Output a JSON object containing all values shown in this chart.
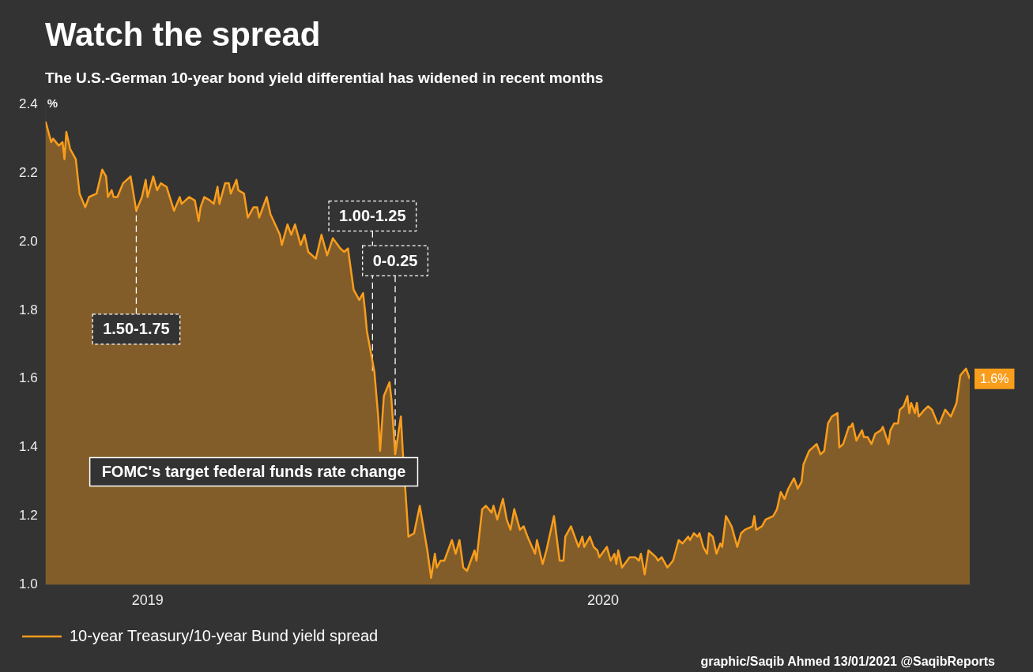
{
  "chart_data": {
    "type": "area",
    "title": "Watch the spread",
    "subtitle": "The U.S.-German 10-year bond yield differential has widened in recent months",
    "ylabel": "%",
    "x": [
      "2019-09-12",
      "2019-09-15",
      "2019-09-16",
      "2019-09-19",
      "2019-09-21",
      "2019-09-22",
      "2019-09-23",
      "2019-09-25",
      "2019-09-28",
      "2019-09-30",
      "2019-10-03",
      "2019-10-05",
      "2019-10-09",
      "2019-10-12",
      "2019-10-14",
      "2019-10-15",
      "2019-10-17",
      "2019-10-18",
      "2019-10-20",
      "2019-10-23",
      "2019-10-27",
      "2019-10-30",
      "2019-11-02",
      "2019-11-04",
      "2019-11-05",
      "2019-11-08",
      "2019-11-10",
      "2019-11-12",
      "2019-11-15",
      "2019-11-19",
      "2019-11-22",
      "2019-11-23",
      "2019-11-27",
      "2019-11-30",
      "2019-12-02",
      "2019-12-03",
      "2019-12-05",
      "2019-12-08",
      "2019-12-10",
      "2019-12-12",
      "2019-12-13",
      "2019-12-16",
      "2019-12-18",
      "2019-12-19",
      "2019-12-22",
      "2019-12-23",
      "2019-12-26",
      "2019-12-28",
      "2019-12-31",
      "2020-01-02",
      "2020-01-03",
      "2020-01-05",
      "2020-01-07",
      "2020-01-09",
      "2020-01-14",
      "2020-01-15",
      "2020-01-18",
      "2020-01-20",
      "2020-01-22",
      "2020-01-25",
      "2020-01-27",
      "2020-01-29",
      "2020-02-02",
      "2020-02-05",
      "2020-02-08",
      "2020-02-11",
      "2020-02-15",
      "2020-02-17",
      "2020-02-19",
      "2020-02-22",
      "2020-02-25",
      "2020-02-27",
      "2020-02-28",
      "2020-02-29",
      "2020-03-04",
      "2020-03-06",
      "2020-03-07",
      "2020-03-09",
      "2020-03-12",
      "2020-03-13",
      "2020-03-15",
      "2020-03-18",
      "2020-03-19",
      "2020-03-22",
      "2020-03-25",
      "2020-03-28",
      "2020-04-01",
      "2020-04-03",
      "2020-04-05",
      "2020-04-06",
      "2020-04-08",
      "2020-04-10",
      "2020-04-14",
      "2020-04-16",
      "2020-04-18",
      "2020-04-20",
      "2020-04-22",
      "2020-04-26",
      "2020-04-27",
      "2020-04-30",
      "2020-05-02",
      "2020-05-05",
      "2020-05-06",
      "2020-05-08",
      "2020-05-11",
      "2020-05-13",
      "2020-05-15",
      "2020-05-17",
      "2020-05-20",
      "2020-05-22",
      "2020-05-24",
      "2020-05-28",
      "2020-05-29",
      "2020-06-01",
      "2020-06-03",
      "2020-06-07",
      "2020-06-10",
      "2020-06-12",
      "2020-06-13",
      "2020-06-16",
      "2020-06-20",
      "2020-06-22",
      "2020-06-23",
      "2020-06-26",
      "2020-06-28",
      "2020-06-30",
      "2020-07-01",
      "2020-07-05",
      "2020-07-07",
      "2020-07-09",
      "2020-07-10",
      "2020-07-11",
      "2020-07-13",
      "2020-07-17",
      "2020-07-20",
      "2020-07-22",
      "2020-07-23",
      "2020-07-25",
      "2020-07-27",
      "2020-07-31",
      "2020-08-01",
      "2020-08-03",
      "2020-08-06",
      "2020-08-09",
      "2020-08-12",
      "2020-08-14",
      "2020-08-17",
      "2020-08-18",
      "2020-08-20",
      "2020-08-22",
      "2020-08-23",
      "2020-08-25",
      "2020-08-27",
      "2020-08-28",
      "2020-08-30",
      "2020-09-01",
      "2020-09-03",
      "2020-09-04",
      "2020-09-06",
      "2020-09-09",
      "2020-09-12",
      "2020-09-14",
      "2020-09-16",
      "2020-09-20",
      "2020-09-21",
      "2020-09-22",
      "2020-09-25",
      "2020-09-27",
      "2020-10-01",
      "2020-10-03",
      "2020-10-05",
      "2020-10-07",
      "2020-10-09",
      "2020-10-12",
      "2020-10-14",
      "2020-10-16",
      "2020-10-17",
      "2020-10-20",
      "2020-10-22",
      "2020-10-24",
      "2020-10-26",
      "2020-10-28",
      "2020-10-30",
      "2020-11-01",
      "2020-11-04",
      "2020-11-05",
      "2020-11-07",
      "2020-11-10",
      "2020-11-11",
      "2020-11-12",
      "2020-11-14",
      "2020-11-17",
      "2020-11-18",
      "2020-11-20",
      "2020-11-22",
      "2020-11-24",
      "2020-11-27",
      "2020-11-28",
      "2020-12-01",
      "2020-12-02",
      "2020-12-04",
      "2020-12-06",
      "2020-12-07",
      "2020-12-09",
      "2020-12-11",
      "2020-12-12",
      "2020-12-13",
      "2020-12-15",
      "2020-12-16",
      "2020-12-17",
      "2020-12-20",
      "2020-12-22",
      "2020-12-24",
      "2020-12-27",
      "2020-12-28",
      "2020-12-31",
      "2021-01-03",
      "2021-01-06",
      "2021-01-08",
      "2021-01-11",
      "2021-01-13"
    ],
    "series": [
      {
        "name": "10-year Treasury/10-year Bund yield spread",
        "color": "#f99d1c",
        "values": [
          2.35,
          2.29,
          2.3,
          2.28,
          2.29,
          2.24,
          2.32,
          2.27,
          2.24,
          2.14,
          2.1,
          2.13,
          2.14,
          2.21,
          2.19,
          2.13,
          2.15,
          2.13,
          2.13,
          2.17,
          2.19,
          2.09,
          2.13,
          2.18,
          2.13,
          2.19,
          2.15,
          2.17,
          2.16,
          2.09,
          2.13,
          2.11,
          2.13,
          2.12,
          2.06,
          2.1,
          2.13,
          2.12,
          2.11,
          2.16,
          2.11,
          2.17,
          2.17,
          2.14,
          2.18,
          2.15,
          2.14,
          2.07,
          2.1,
          2.1,
          2.07,
          2.1,
          2.13,
          2.08,
          2.02,
          1.99,
          2.05,
          2.02,
          2.05,
          1.99,
          2.02,
          1.97,
          1.95,
          2.02,
          1.96,
          2.01,
          1.98,
          1.97,
          1.98,
          1.86,
          1.83,
          1.85,
          1.8,
          1.74,
          1.62,
          1.49,
          1.39,
          1.55,
          1.59,
          1.54,
          1.38,
          1.49,
          1.39,
          1.14,
          1.15,
          1.23,
          1.1,
          1.02,
          1.09,
          1.05,
          1.07,
          1.07,
          1.13,
          1.09,
          1.13,
          1.05,
          1.04,
          1.1,
          1.07,
          1.22,
          1.23,
          1.21,
          1.23,
          1.19,
          1.25,
          1.19,
          1.16,
          1.22,
          1.16,
          1.17,
          1.14,
          1.09,
          1.13,
          1.06,
          1.1,
          1.2,
          1.07,
          1.07,
          1.14,
          1.17,
          1.11,
          1.14,
          1.11,
          1.14,
          1.11,
          1.1,
          1.08,
          1.11,
          1.07,
          1.09,
          1.06,
          1.1,
          1.05,
          1.08,
          1.08,
          1.07,
          1.09,
          1.03,
          1.1,
          1.08,
          1.07,
          1.08,
          1.05,
          1.07,
          1.13,
          1.12,
          1.14,
          1.13,
          1.15,
          1.14,
          1.15,
          1.11,
          1.09,
          1.15,
          1.14,
          1.09,
          1.12,
          1.11,
          1.2,
          1.17,
          1.11,
          1.15,
          1.16,
          1.17,
          1.2,
          1.16,
          1.17,
          1.19,
          1.2,
          1.22,
          1.27,
          1.25,
          1.28,
          1.31,
          1.28,
          1.3,
          1.35,
          1.39,
          1.4,
          1.41,
          1.38,
          1.39,
          1.47,
          1.49,
          1.5,
          1.4,
          1.41,
          1.46,
          1.46,
          1.47,
          1.42,
          1.45,
          1.43,
          1.43,
          1.41,
          1.44,
          1.45,
          1.46,
          1.41,
          1.45,
          1.47,
          1.47,
          1.51,
          1.52,
          1.55,
          1.5,
          1.53,
          1.5,
          1.53,
          1.49,
          1.51,
          1.52,
          1.51,
          1.47,
          1.47,
          1.51,
          1.49,
          1.53,
          1.61,
          1.63,
          1.6
        ]
      }
    ],
    "xticks": [
      {
        "value": "2019-11-05",
        "label": "2019"
      },
      {
        "value": "2020-07-03",
        "label": "2020"
      }
    ],
    "ylim": [
      1.0,
      2.4
    ],
    "xlim": [
      "2019-09-12",
      "2021-01-13"
    ],
    "yticks": [
      {
        "value": 1.0,
        "label": "1.0"
      },
      {
        "value": 1.2,
        "label": "1.2"
      },
      {
        "value": 1.4,
        "label": "1.4"
      },
      {
        "value": 1.6,
        "label": "1.6"
      },
      {
        "value": 1.8,
        "label": "1.8"
      },
      {
        "value": 2.0,
        "label": "2.0"
      },
      {
        "value": 2.2,
        "label": "2.2"
      },
      {
        "value": 2.4,
        "label": "2.4"
      }
    ],
    "legend": "bottom left",
    "ref_lines": [
      {
        "axis": "x",
        "value": "2019-10-30",
        "label": "1.50-1.75",
        "color": "#ffffff",
        "line_style": "dashed"
      },
      {
        "axis": "x",
        "value": "2020-03-03",
        "label": "1.00-1.25",
        "color": "#ffffff",
        "line_style": "dashed"
      },
      {
        "axis": "x",
        "value": "2020-03-15",
        "label": "0-0.25",
        "color": "#ffffff",
        "line_style": "dashed"
      }
    ],
    "annotations": [
      "FOMC's target federal funds rate change",
      {
        "text": "1.6%",
        "x": "2021-01-13",
        "y": 1.6
      },
      "graphic/Saqib Ahmed 13/01/2021 @SaqibReports"
    ]
  }
}
